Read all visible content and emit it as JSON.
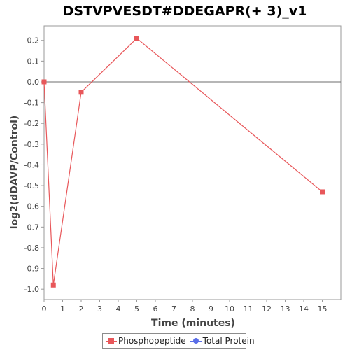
{
  "chart_data": {
    "type": "line",
    "title": "DSTVPVESDT#DDEGAPR(+ 3)_v1",
    "xlabel": "Time (minutes)",
    "ylabel": "log2(dDAVP/Control)",
    "xlim": [
      0,
      16
    ],
    "ylim": [
      -1.05,
      0.27
    ],
    "x_ticks": [
      0,
      1,
      2,
      3,
      4,
      5,
      6,
      7,
      8,
      9,
      10,
      11,
      12,
      13,
      14,
      15
    ],
    "y_ticks": [
      0.2,
      0.1,
      0.0,
      -0.1,
      -0.2,
      -0.3,
      -0.4,
      -0.5,
      -0.6,
      -0.7,
      -0.8,
      -0.9,
      -1.0
    ],
    "y_tick_labels": [
      "0.2",
      "0.1",
      "0.0",
      "-0.1",
      "-0.2",
      "-0.3",
      "-0.4",
      "-0.5",
      "-0.6",
      "-0.7",
      "-0.8",
      "-0.9",
      "-1.0"
    ],
    "zero_line": true,
    "grid": false,
    "legend_position": "bottom-center",
    "series": [
      {
        "name": "Phosphopeptide",
        "color": "#e8575a",
        "marker": "square",
        "x": [
          0,
          0.5,
          2,
          5,
          15
        ],
        "y": [
          0.0,
          -0.98,
          -0.05,
          0.21,
          -0.53
        ]
      },
      {
        "name": "Total Protein",
        "color": "#5a6ee8",
        "marker": "circle",
        "x": [],
        "y": []
      }
    ]
  }
}
